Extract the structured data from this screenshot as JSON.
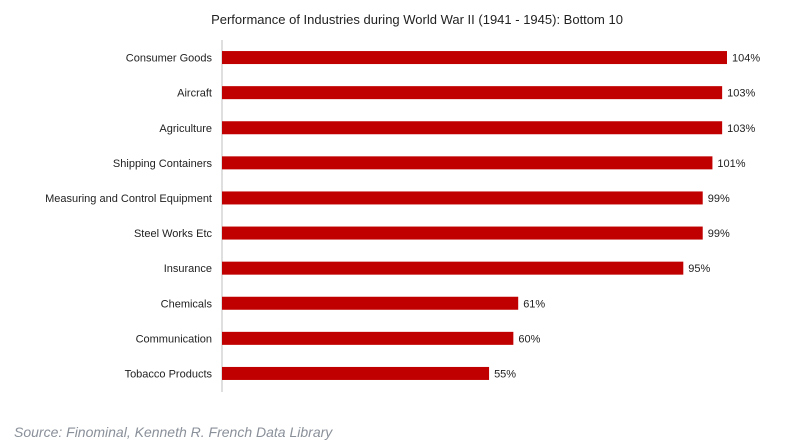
{
  "chart_data": {
    "type": "bar",
    "orientation": "horizontal",
    "title": "Performance of Industries during World War II (1941 - 1945): Bottom 10",
    "categories": [
      "Consumer Goods",
      "Aircraft",
      "Agriculture",
      "Shipping Containers",
      "Measuring and Control Equipment",
      "Steel Works Etc",
      "Insurance",
      "Chemicals",
      "Communication",
      "Tobacco Products"
    ],
    "values": [
      104,
      103,
      103,
      101,
      99,
      99,
      95,
      61,
      60,
      55
    ],
    "value_labels": [
      "104%",
      "103%",
      "103%",
      "101%",
      "99%",
      "99%",
      "95%",
      "61%",
      "60%",
      "55%"
    ],
    "unit": "%",
    "xlabel": "",
    "ylabel": "",
    "xlim": [
      0,
      104
    ],
    "bar_color": "#c00000",
    "grid": false,
    "legend": "none"
  },
  "source_note": "Source: Finominal, Kenneth R. French Data Library"
}
